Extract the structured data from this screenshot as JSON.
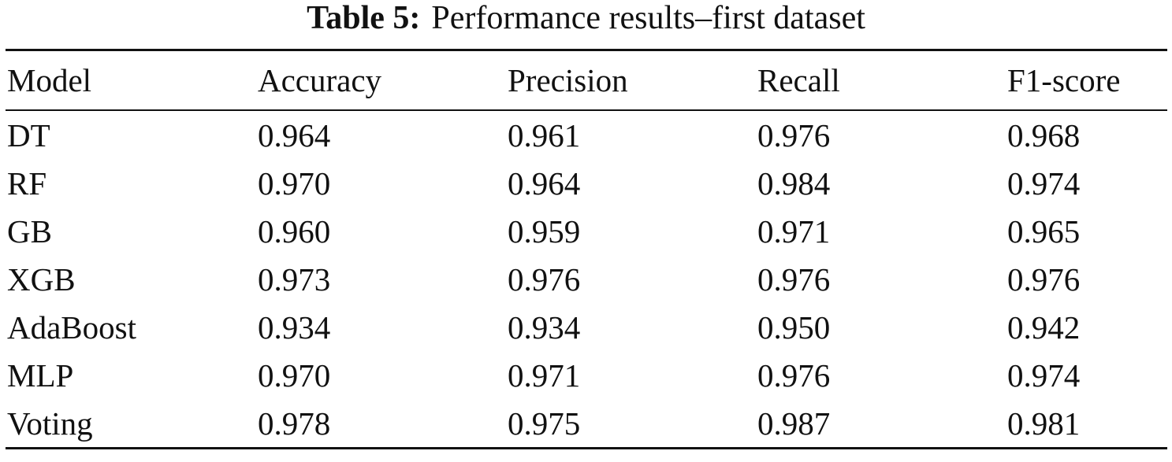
{
  "caption": {
    "label": "Table 5:",
    "text": "Performance results–first dataset"
  },
  "table": {
    "columns": [
      "Model",
      "Accuracy",
      "Precision",
      "Recall",
      "F1-score"
    ],
    "rows": [
      [
        "DT",
        "0.964",
        "0.961",
        "0.976",
        "0.968"
      ],
      [
        "RF",
        "0.970",
        "0.964",
        "0.984",
        "0.974"
      ],
      [
        "GB",
        "0.960",
        "0.959",
        "0.971",
        "0.965"
      ],
      [
        "XGB",
        "0.973",
        "0.976",
        "0.976",
        "0.976"
      ],
      [
        "AdaBoost",
        "0.934",
        "0.934",
        "0.950",
        "0.942"
      ],
      [
        "MLP",
        "0.970",
        "0.971",
        "0.976",
        "0.974"
      ],
      [
        "Voting",
        "0.978",
        "0.975",
        "0.987",
        "0.981"
      ]
    ]
  }
}
